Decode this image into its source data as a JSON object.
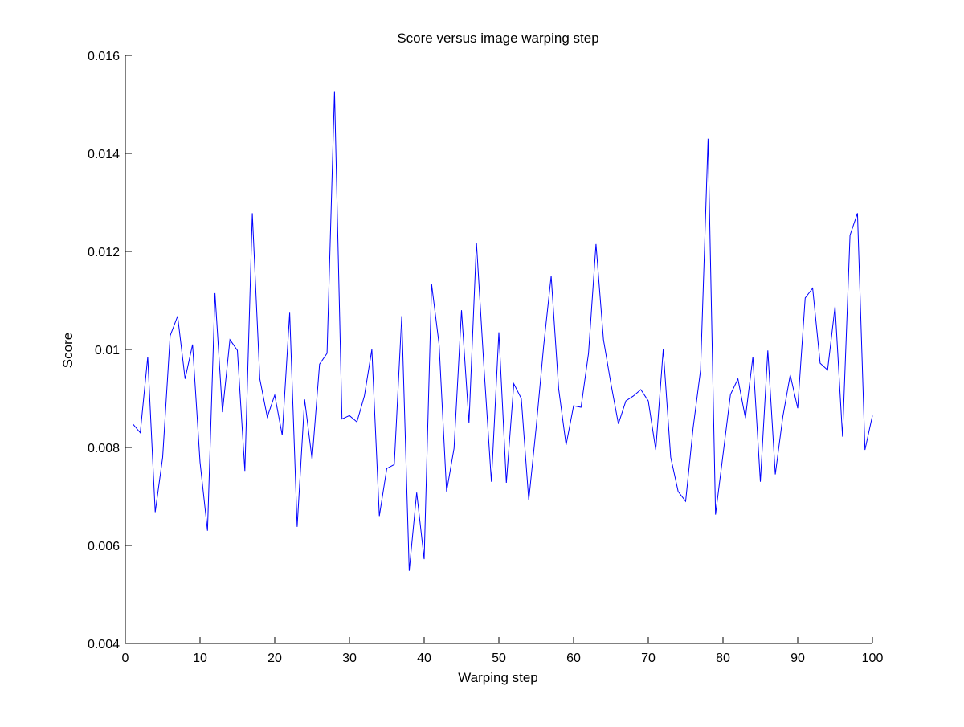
{
  "chart_data": {
    "type": "line",
    "title": "Score versus image warping step",
    "xlabel": "Warping step",
    "ylabel": "Score",
    "xlim": [
      0,
      100
    ],
    "ylim": [
      0.004,
      0.016
    ],
    "xticks": [
      0,
      10,
      20,
      30,
      40,
      50,
      60,
      70,
      80,
      90,
      100
    ],
    "yticks": [
      0.004,
      0.006,
      0.008,
      0.01,
      0.012,
      0.014,
      0.016
    ],
    "ytick_labels": [
      "0.004",
      "0.006",
      "0.008",
      "0.01",
      "0.012",
      "0.014",
      "0.016"
    ],
    "grid": false,
    "series": [
      {
        "color": "#0000ff",
        "x": [
          1,
          2,
          3,
          4,
          5,
          6,
          7,
          8,
          9,
          10,
          11,
          12,
          13,
          14,
          15,
          16,
          17,
          18,
          19,
          20,
          21,
          22,
          23,
          24,
          25,
          26,
          27,
          28,
          29,
          30,
          31,
          32,
          33,
          34,
          35,
          36,
          37,
          38,
          39,
          40,
          41,
          42,
          43,
          44,
          45,
          46,
          47,
          48,
          49,
          50,
          51,
          52,
          53,
          54,
          55,
          56,
          57,
          58,
          59,
          60,
          61,
          62,
          63,
          64,
          65,
          66,
          67,
          68,
          69,
          70,
          71,
          72,
          73,
          74,
          75,
          76,
          77,
          78,
          79,
          80,
          81,
          82,
          83,
          84,
          85,
          86,
          87,
          88,
          89,
          90,
          91,
          92,
          93,
          94,
          95,
          96,
          97,
          98,
          99,
          100
        ],
        "y": [
          0.00848,
          0.0083,
          0.00985,
          0.00668,
          0.0078,
          0.01028,
          0.01068,
          0.0094,
          0.0101,
          0.0077,
          0.0063,
          0.01115,
          0.00872,
          0.0102,
          0.00998,
          0.00752,
          0.01278,
          0.0094,
          0.00862,
          0.00907,
          0.00825,
          0.01075,
          0.00638,
          0.00898,
          0.00775,
          0.0097,
          0.00992,
          0.01527,
          0.00858,
          0.00865,
          0.00852,
          0.00905,
          0.01,
          0.0066,
          0.00757,
          0.00765,
          0.01068,
          0.00548,
          0.00708,
          0.00572,
          0.01133,
          0.0101,
          0.0071,
          0.00798,
          0.0108,
          0.0085,
          0.01218,
          0.00965,
          0.0073,
          0.01035,
          0.00728,
          0.0093,
          0.009,
          0.00692,
          0.00842,
          0.01008,
          0.0115,
          0.0092,
          0.00805,
          0.00885,
          0.00882,
          0.00992,
          0.01215,
          0.0102,
          0.0093,
          0.00848,
          0.00895,
          0.00905,
          0.00918,
          0.00895,
          0.00795,
          0.01,
          0.0078,
          0.0071,
          0.0069,
          0.0084,
          0.00958,
          0.0143,
          0.00663,
          0.00785,
          0.00908,
          0.0094,
          0.0086,
          0.00985,
          0.0073,
          0.00998,
          0.00745,
          0.00862,
          0.00948,
          0.0088,
          0.01105,
          0.01125,
          0.00972,
          0.00958,
          0.01088,
          0.00822,
          0.01233,
          0.01278,
          0.00795,
          0.00865
        ]
      }
    ]
  }
}
